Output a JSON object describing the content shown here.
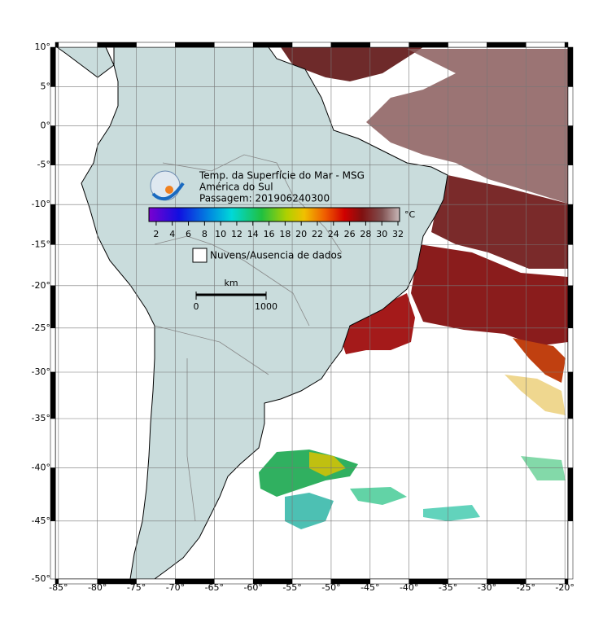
{
  "map": {
    "title_lines": [
      "Temp. da Superfície do Mar - MSG",
      "América do Sul",
      "Passagem: 201906240300"
    ],
    "projection": "mercator",
    "lon_lim": [
      -85.4,
      -19.6
    ],
    "lat_lim": [
      -50,
      10
    ],
    "grid": true,
    "lon_ticks": [
      {
        "value": -85,
        "label": "-85°"
      },
      {
        "value": -80,
        "label": "-80°"
      },
      {
        "value": -75,
        "label": "-75°"
      },
      {
        "value": -70,
        "label": "-70°"
      },
      {
        "value": -65,
        "label": "-65°"
      },
      {
        "value": -60,
        "label": "-60°"
      },
      {
        "value": -55,
        "label": "-55°"
      },
      {
        "value": -50,
        "label": "-50°"
      },
      {
        "value": -45,
        "label": "-45°"
      },
      {
        "value": -40,
        "label": "-40°"
      },
      {
        "value": -35,
        "label": "-35°"
      },
      {
        "value": -30,
        "label": "-30°"
      },
      {
        "value": -25,
        "label": "-25°"
      },
      {
        "value": -20,
        "label": "-20°"
      }
    ],
    "lat_ticks": [
      {
        "value": 10,
        "label": "10°"
      },
      {
        "value": 5,
        "label": "5°"
      },
      {
        "value": 0,
        "label": "0°"
      },
      {
        "value": -5,
        "label": "-5°"
      },
      {
        "value": -10,
        "label": "-10°"
      },
      {
        "value": -15,
        "label": "-15°"
      },
      {
        "value": -20,
        "label": "-20°"
      },
      {
        "value": -25,
        "label": "-25°"
      },
      {
        "value": -30,
        "label": "-30°"
      },
      {
        "value": -35,
        "label": "-35°"
      },
      {
        "value": -40,
        "label": "-40°"
      },
      {
        "value": -45,
        "label": "-45°"
      },
      {
        "value": -50,
        "label": "-50°"
      }
    ],
    "colorbar": {
      "lim": [
        1.1,
        32.2
      ],
      "ticks": [
        2,
        4,
        6,
        8,
        10,
        12,
        14,
        16,
        18,
        20,
        22,
        24,
        26,
        28,
        30,
        32
      ],
      "unit": "°C"
    },
    "legend": "Nuvens/Ausencia de dados",
    "scale_bar": {
      "unit": "km",
      "ticks": [
        0,
        1000
      ]
    }
  }
}
